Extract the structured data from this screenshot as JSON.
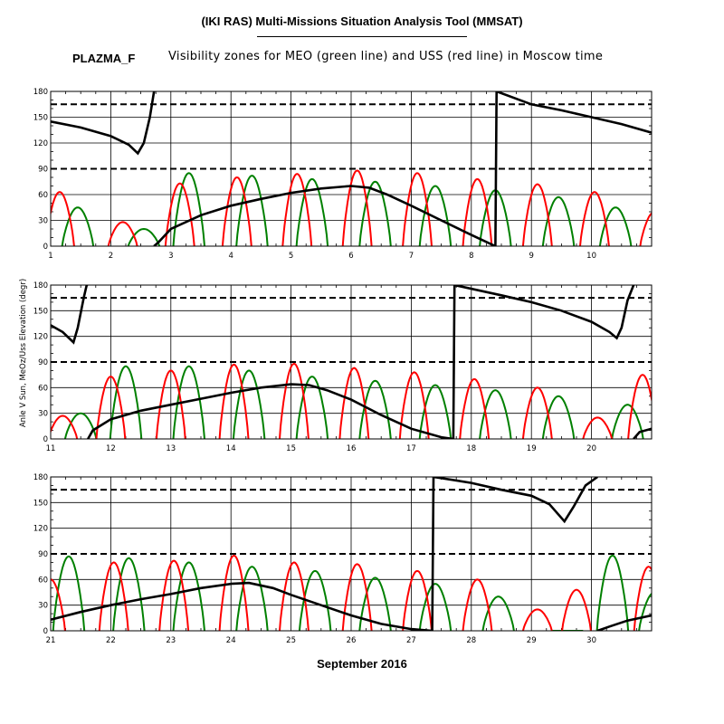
{
  "header": {
    "title": "(IKI RAS) Multi-Missions Situation Analysis Tool (MMSAT)",
    "mission": "PLAZMA_F",
    "subtitle": "Visibility zones for MEO (green line) and USS (red line) in Moscow time"
  },
  "colors": {
    "meo": "#008000",
    "uss": "#ff0000",
    "sun": "#000000",
    "grid": "#000000"
  },
  "chart_data": {
    "type": "line",
    "xlabel": "September 2016",
    "ylabel": "Anle V Sun, MeOz/Uss Elevation (degr)",
    "ylim": [
      0,
      180
    ],
    "yticks": [
      0,
      30,
      60,
      90,
      120,
      150,
      180
    ],
    "reference_lines": [
      90,
      165
    ],
    "grid": true,
    "panels": [
      {
        "xlim": [
          1,
          11
        ],
        "xticks": [
          "1",
          "2",
          "3",
          "4",
          "5",
          "6",
          "7",
          "8",
          "9",
          "10"
        ],
        "meo_peaks": [
          [
            1.45,
            45
          ],
          [
            2.55,
            20
          ],
          [
            3.3,
            85
          ],
          [
            4.35,
            82
          ],
          [
            5.35,
            78
          ],
          [
            6.4,
            75
          ],
          [
            7.4,
            70
          ],
          [
            8.4,
            65
          ],
          [
            9.45,
            57
          ],
          [
            10.4,
            45
          ]
        ],
        "uss_peaks": [
          [
            1.15,
            63
          ],
          [
            2.2,
            28
          ],
          [
            3.15,
            73
          ],
          [
            4.1,
            80
          ],
          [
            5.1,
            84
          ],
          [
            6.1,
            88
          ],
          [
            7.1,
            85
          ],
          [
            8.1,
            78
          ],
          [
            9.1,
            72
          ],
          [
            10.05,
            63
          ],
          [
            11.05,
            40
          ]
        ],
        "sun": [
          [
            1,
            145
          ],
          [
            1.5,
            138
          ],
          [
            2,
            128
          ],
          [
            2.3,
            118
          ],
          [
            2.45,
            108
          ],
          [
            2.55,
            120
          ],
          [
            2.65,
            150
          ],
          [
            2.72,
            180
          ],
          [
            null,
            null
          ],
          [
            2.72,
            0
          ],
          [
            2.8,
            5
          ],
          [
            3,
            20
          ],
          [
            3.5,
            36
          ],
          [
            4,
            47
          ],
          [
            4.5,
            55
          ],
          [
            5,
            62
          ],
          [
            5.5,
            67
          ],
          [
            6,
            70
          ],
          [
            6.3,
            68
          ],
          [
            6.6,
            60
          ],
          [
            7,
            47
          ],
          [
            7.5,
            30
          ],
          [
            8,
            13
          ],
          [
            8.4,
            0
          ],
          [
            8.42,
            180
          ],
          [
            9,
            165
          ],
          [
            9.5,
            158
          ],
          [
            10,
            150
          ],
          [
            10.5,
            142
          ],
          [
            11,
            132
          ]
        ]
      },
      {
        "xlim": [
          11,
          21
        ],
        "xticks": [
          "11",
          "12",
          "13",
          "14",
          "15",
          "16",
          "17",
          "18",
          "19",
          "20"
        ],
        "meo_peaks": [
          [
            11.5,
            30
          ],
          [
            12.25,
            85
          ],
          [
            13.3,
            85
          ],
          [
            14.3,
            80
          ],
          [
            15.35,
            73
          ],
          [
            16.4,
            68
          ],
          [
            17.4,
            63
          ],
          [
            18.4,
            57
          ],
          [
            19.45,
            50
          ],
          [
            20.6,
            40
          ]
        ],
        "uss_peaks": [
          [
            11.2,
            27
          ],
          [
            12.0,
            73
          ],
          [
            13.0,
            80
          ],
          [
            14.05,
            87
          ],
          [
            15.05,
            88
          ],
          [
            16.05,
            83
          ],
          [
            17.05,
            78
          ],
          [
            18.05,
            70
          ],
          [
            19.1,
            60
          ],
          [
            20.1,
            25
          ],
          [
            20.85,
            75
          ]
        ],
        "sun": [
          [
            11,
            133
          ],
          [
            11.2,
            125
          ],
          [
            11.38,
            113
          ],
          [
            11.45,
            130
          ],
          [
            11.55,
            165
          ],
          [
            11.6,
            180
          ],
          [
            11.62,
            180
          ],
          [
            null,
            null
          ],
          [
            11.62,
            0
          ],
          [
            11.7,
            10
          ],
          [
            12,
            23
          ],
          [
            12.5,
            33
          ],
          [
            13,
            40
          ],
          [
            13.5,
            47
          ],
          [
            14,
            54
          ],
          [
            14.5,
            60
          ],
          [
            15,
            64
          ],
          [
            15.3,
            63
          ],
          [
            15.6,
            57
          ],
          [
            16,
            46
          ],
          [
            16.5,
            28
          ],
          [
            17,
            12
          ],
          [
            17.5,
            2
          ],
          [
            17.7,
            0
          ],
          [
            17.72,
            180
          ],
          [
            18.5,
            168
          ],
          [
            19,
            160
          ],
          [
            19.5,
            150
          ],
          [
            20,
            137
          ],
          [
            20.3,
            125
          ],
          [
            20.42,
            118
          ],
          [
            20.5,
            130
          ],
          [
            20.6,
            162
          ],
          [
            20.7,
            180
          ],
          [
            null,
            null
          ],
          [
            20.7,
            0
          ],
          [
            20.8,
            8
          ],
          [
            21,
            12
          ]
        ]
      },
      {
        "xlim": [
          21,
          31
        ],
        "xticks": [
          "21",
          "22",
          "23",
          "24",
          "25",
          "26",
          "27",
          "28",
          "29",
          "30"
        ],
        "meo_peaks": [
          [
            21.3,
            87
          ],
          [
            22.3,
            85
          ],
          [
            23.3,
            80
          ],
          [
            24.35,
            75
          ],
          [
            25.4,
            70
          ],
          [
            26.4,
            62
          ],
          [
            27.4,
            55
          ],
          [
            28.45,
            40
          ],
          [
            29.6,
            0
          ],
          [
            30.35,
            88
          ],
          [
            31.05,
            45
          ]
        ],
        "uss_peaks": [
          [
            21.0,
            60
          ],
          [
            22.05,
            80
          ],
          [
            23.05,
            82
          ],
          [
            24.05,
            88
          ],
          [
            25.05,
            80
          ],
          [
            26.1,
            78
          ],
          [
            27.1,
            70
          ],
          [
            28.1,
            60
          ],
          [
            29.1,
            25
          ],
          [
            29.75,
            48
          ],
          [
            30.95,
            75
          ]
        ],
        "sun": [
          [
            21,
            13
          ],
          [
            21.5,
            22
          ],
          [
            22,
            30
          ],
          [
            22.5,
            37
          ],
          [
            23,
            43
          ],
          [
            23.5,
            50
          ],
          [
            24,
            55
          ],
          [
            24.3,
            56
          ],
          [
            24.7,
            50
          ],
          [
            25,
            42
          ],
          [
            25.5,
            30
          ],
          [
            26,
            18
          ],
          [
            26.5,
            8
          ],
          [
            27,
            2
          ],
          [
            27.35,
            0
          ],
          [
            27.37,
            180
          ],
          [
            28,
            173
          ],
          [
            28.5,
            165
          ],
          [
            29,
            158
          ],
          [
            29.3,
            148
          ],
          [
            29.55,
            128
          ],
          [
            29.7,
            145
          ],
          [
            29.9,
            170
          ],
          [
            30.1,
            180
          ],
          [
            null,
            null
          ],
          [
            30.1,
            0
          ],
          [
            30.3,
            5
          ],
          [
            30.6,
            12
          ],
          [
            31,
            18
          ]
        ]
      }
    ]
  }
}
